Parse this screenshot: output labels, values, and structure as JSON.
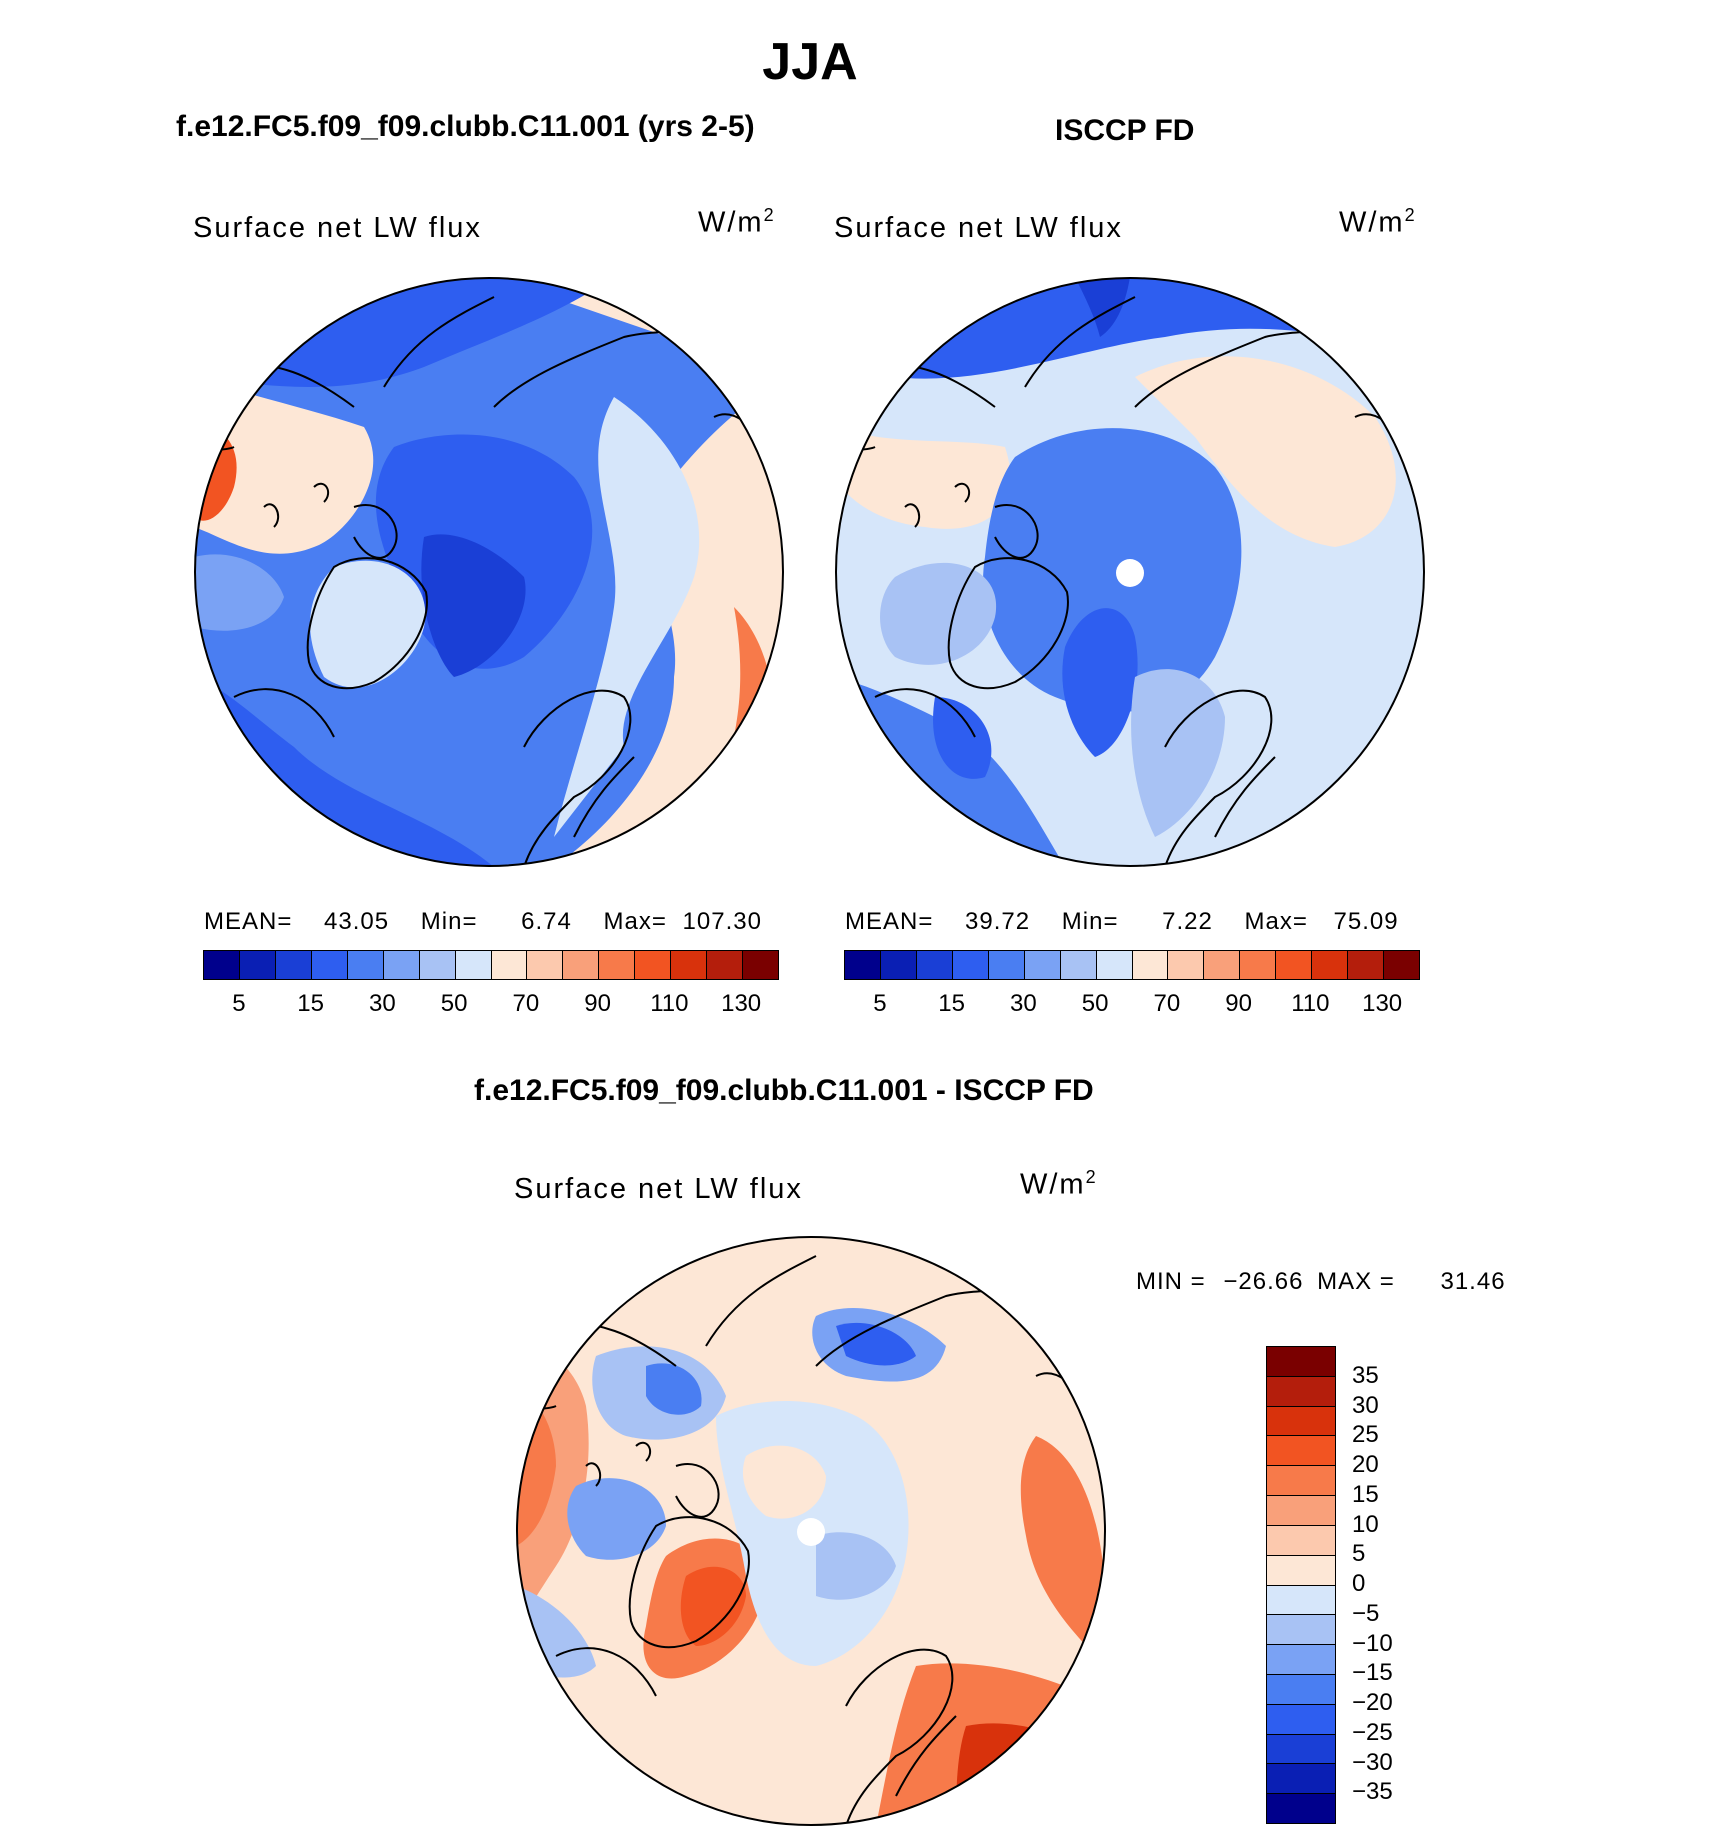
{
  "title": "JJA",
  "panels": [
    {
      "case_title": "f.e12.FC5.f09_f09.clubb.C11.001 (yrs 2-5)",
      "variable": "Surface net LW flux",
      "units_base": "W/m",
      "units_exp": "2",
      "stats": {
        "mean_label": "MEAN=",
        "mean": "43.05",
        "min_label": "Min=",
        "min": "6.74",
        "max_label": "Max=",
        "max": "107.30"
      },
      "colorbar_ticks": [
        "5",
        "15",
        "30",
        "50",
        "70",
        "90",
        "110",
        "130"
      ]
    },
    {
      "case_title": "ISCCP FD",
      "variable": "Surface net LW flux",
      "units_base": "W/m",
      "units_exp": "2",
      "stats": {
        "mean_label": "MEAN=",
        "mean": "39.72",
        "min_label": "Min=",
        "min": "7.22",
        "max_label": "Max=",
        "max": "75.09"
      },
      "colorbar_ticks": [
        "5",
        "15",
        "30",
        "50",
        "70",
        "90",
        "110",
        "130"
      ]
    },
    {
      "case_title": "f.e12.FC5.f09_f09.clubb.C11.001 - ISCCP FD",
      "variable": "Surface net LW flux",
      "units_base": "W/m",
      "units_exp": "2",
      "stats": {
        "min_label": "MIN =",
        "min": "−26.66",
        "max_label": "MAX =",
        "max": "31.46"
      },
      "colorbar_ticks": [
        "35",
        "30",
        "25",
        "20",
        "15",
        "10",
        "5",
        "0",
        "−5",
        "−10",
        "−15",
        "−20",
        "−25",
        "−30",
        "−35"
      ]
    }
  ],
  "colors": {
    "abs_scale": [
      "#00008c",
      "#0a1fb4",
      "#1a3fd6",
      "#2e5ef0",
      "#4a7ef2",
      "#7aa2f4",
      "#a8c2f4",
      "#d6e6fa",
      "#fde7d6",
      "#fcc9ae",
      "#f9a07a",
      "#f77a4a",
      "#f25422",
      "#d8320c",
      "#b41e0c",
      "#7a0000"
    ],
    "diff_scale": [
      "#7a0000",
      "#b41e0c",
      "#d8320c",
      "#f25422",
      "#f77a4a",
      "#f9a07a",
      "#fcc9ae",
      "#fde7d6",
      "#d6e6fa",
      "#a8c2f4",
      "#7aa2f4",
      "#4a7ef2",
      "#2e5ef0",
      "#1a3fd6",
      "#0a1fb4",
      "#00008c"
    ]
  }
}
